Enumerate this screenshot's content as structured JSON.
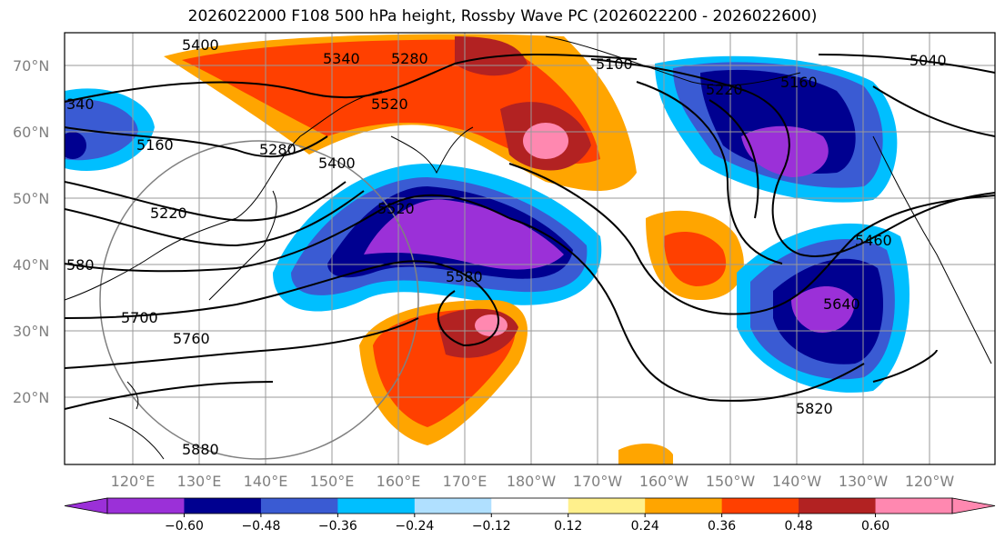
{
  "title": "2026022000 F108 500 hPa height, Rossby Wave PC (2026022200 - 2026022600)",
  "map": {
    "lat_labels": [
      "70°N",
      "60°N",
      "50°N",
      "40°N",
      "30°N",
      "20°N"
    ],
    "lon_labels": [
      "120°E",
      "130°E",
      "140°E",
      "150°E",
      "160°E",
      "170°E",
      "180°W",
      "170°W",
      "160°W",
      "150°W",
      "140°W",
      "130°W",
      "120°W"
    ],
    "contour_labels": [
      "5400",
      "5340",
      "5280",
      "5100",
      "5040",
      "5220",
      "5160",
      "5520",
      "5460",
      "5580",
      "5700",
      "5760",
      "5880",
      "5820",
      "5640",
      "340",
      "580"
    ]
  },
  "colorbar": {
    "colors": [
      "#9b30d8",
      "#000090",
      "#3a5bd3",
      "#00bfff",
      "#b0e0ff",
      "#ffffff",
      "#fff08c",
      "#ffa500",
      "#ff4000",
      "#b22222",
      "#ff88b0"
    ],
    "ticks": [
      "−0.60",
      "−0.48",
      "−0.36",
      "−0.24",
      "−0.12",
      "0.12",
      "0.24",
      "0.36",
      "0.48",
      "0.60"
    ]
  }
}
